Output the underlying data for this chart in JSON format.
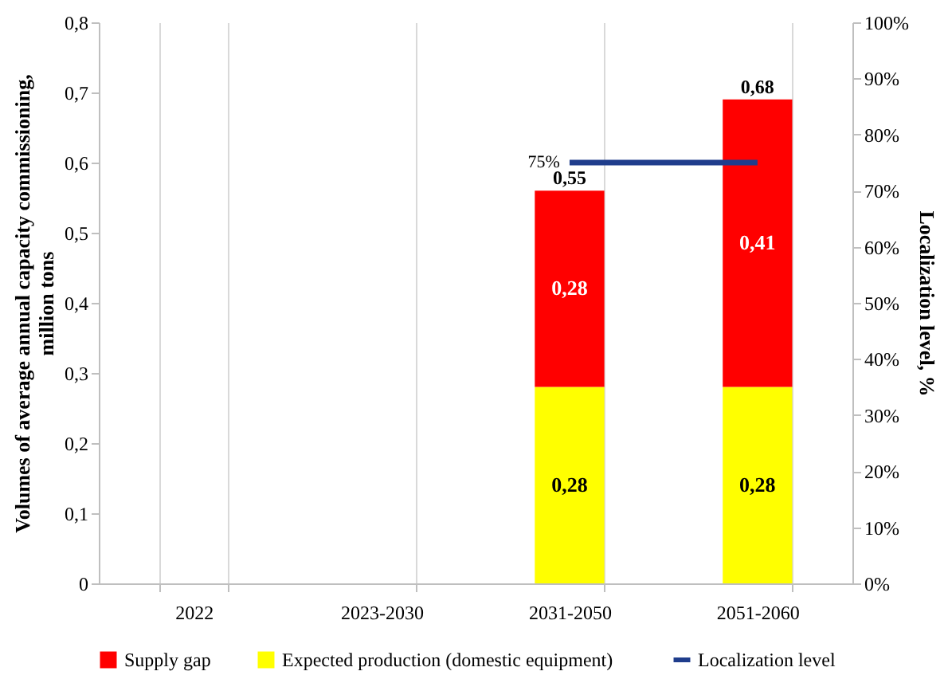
{
  "chart_data": {
    "type": "bar",
    "stacked": true,
    "categories": [
      "2022",
      "2023-2030",
      "2031-2050",
      "2051-2060"
    ],
    "ylabel": "Volumes of average annual capacity commissioning, million tons",
    "y2label": "Localization level, %",
    "ylim": [
      0,
      0.8
    ],
    "yticks": [
      {
        "value": 0,
        "label": "0"
      },
      {
        "value": 0.1,
        "label": "0,1"
      },
      {
        "value": 0.2,
        "label": "0,2"
      },
      {
        "value": 0.3,
        "label": "0,3"
      },
      {
        "value": 0.4,
        "label": "0,4"
      },
      {
        "value": 0.5,
        "label": "0,5"
      },
      {
        "value": 0.6,
        "label": "0,6"
      },
      {
        "value": 0.7,
        "label": "0,7"
      },
      {
        "value": 0.8,
        "label": "0,8"
      }
    ],
    "y2lim": [
      0,
      100
    ],
    "y2ticks": [
      {
        "value": 0,
        "label": "0%"
      },
      {
        "value": 10,
        "label": "10%"
      },
      {
        "value": 20,
        "label": "20%"
      },
      {
        "value": 30,
        "label": "30%"
      },
      {
        "value": 40,
        "label": "40%"
      },
      {
        "value": 50,
        "label": "50%"
      },
      {
        "value": 60,
        "label": "60%"
      },
      {
        "value": 70,
        "label": "70%"
      },
      {
        "value": 80,
        "label": "80%"
      },
      {
        "value": 90,
        "label": "90%"
      },
      {
        "value": 100,
        "label": "100%"
      }
    ],
    "series": [
      {
        "name": "Expected production  (domestic equipment)",
        "color": "#ffff00",
        "values": [
          null,
          null,
          0.28,
          0.28
        ],
        "value_labels": [
          null,
          null,
          "0,28",
          "0,28"
        ]
      },
      {
        "name": "Supply gap",
        "color": "#ff0000",
        "values": [
          null,
          null,
          0.28,
          0.41
        ],
        "value_labels": [
          null,
          null,
          "0,28",
          "0,41"
        ]
      },
      {
        "name": "Localization level",
        "type": "line",
        "axis": "y2",
        "color": "#1f3d8c",
        "values": [
          null,
          null,
          75,
          75
        ],
        "value_labels": [
          null,
          null,
          "75%",
          null
        ]
      }
    ],
    "totals": [
      null,
      null,
      "0,55",
      "0,68"
    ],
    "grid": "x",
    "legend": "bottom"
  }
}
